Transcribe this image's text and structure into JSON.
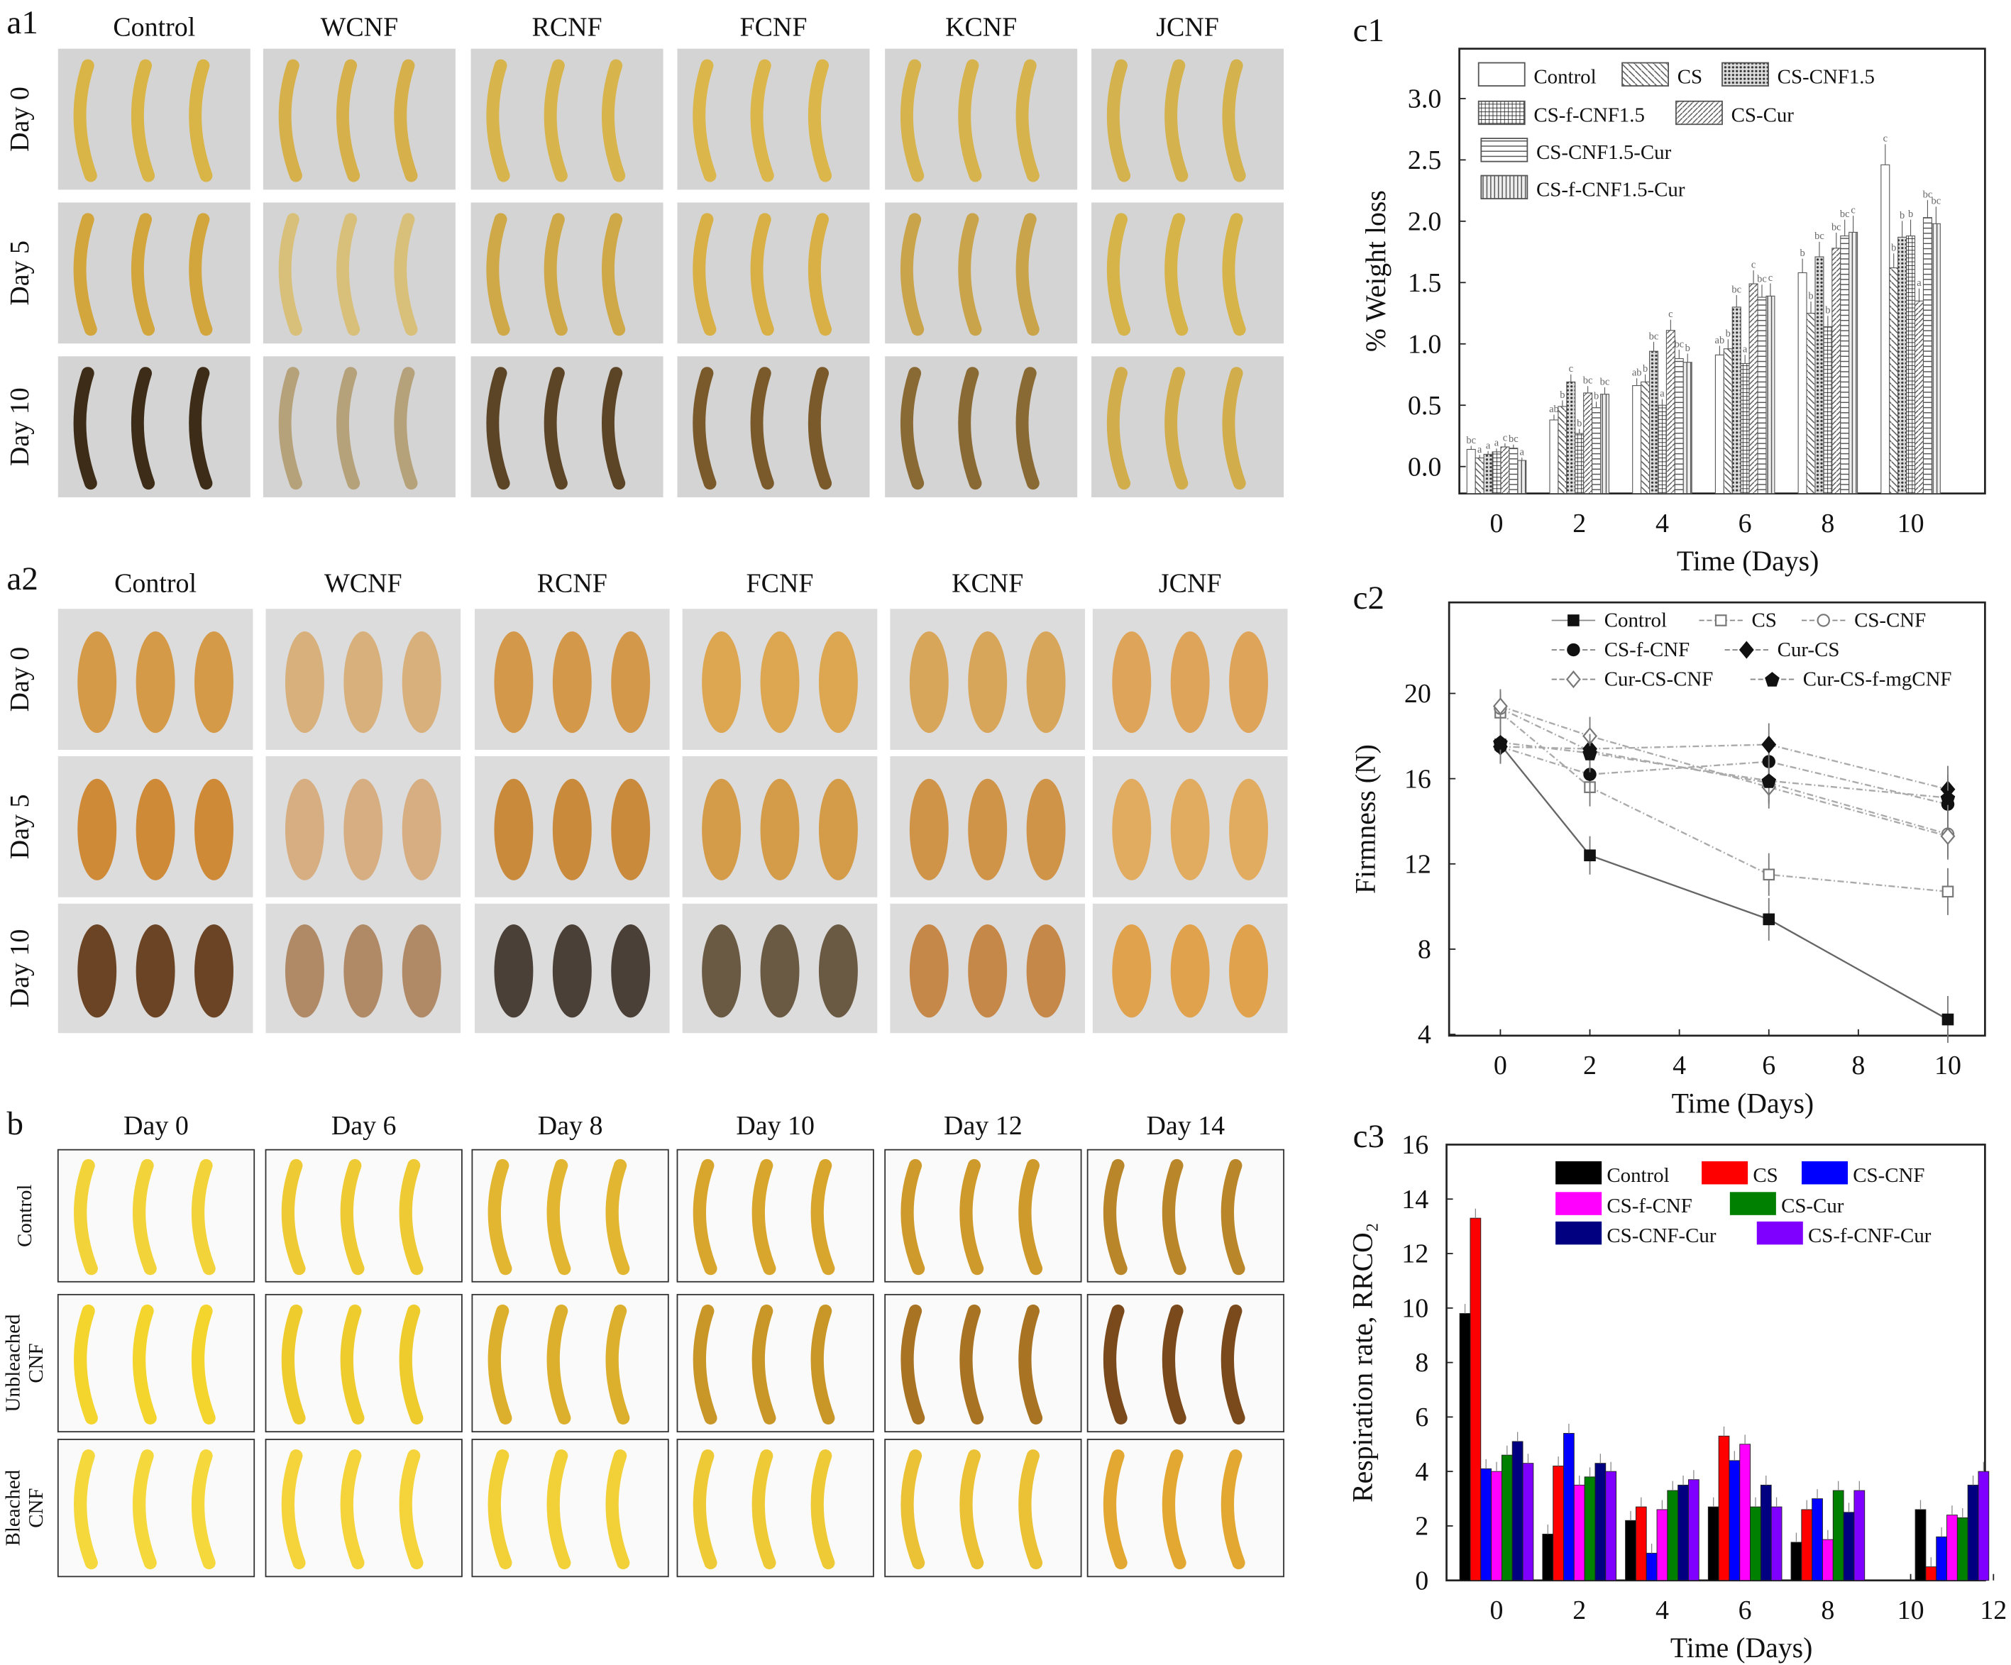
{
  "panel_a1": {
    "label": "a1",
    "columns": [
      "Control",
      "WCNF",
      "RCNF",
      "FCNF",
      "KCNF",
      "JCNF"
    ],
    "rows": [
      "Day 0",
      "Day 5",
      "Day 10"
    ]
  },
  "panel_a2": {
    "label": "a2",
    "columns": [
      "Control",
      "WCNF",
      "RCNF",
      "FCNF",
      "KCNF",
      "JCNF"
    ],
    "rows": [
      "Day 0",
      "Day 5",
      "Day 10"
    ]
  },
  "panel_b": {
    "label": "b",
    "columns": [
      "Day 0",
      "Day 6",
      "Day 8",
      "Day 10",
      "Day 12",
      "Day 14"
    ],
    "rows": [
      [
        "Control"
      ],
      [
        "Unbleached",
        "CNF"
      ],
      [
        "Bleached",
        "CNF"
      ]
    ]
  },
  "chart_data": [
    {
      "panel": "c1",
      "type": "bar",
      "xlabel": "Time (Days)",
      "ylabel": "% Weight loss",
      "categories": [
        "0",
        "2",
        "4",
        "6",
        "8",
        "10"
      ],
      "ylim": [
        -0.2,
        3.4
      ],
      "yticks": [
        "0.0",
        "0.5",
        "1.0",
        "1.5",
        "2.0",
        "2.5",
        "3.0"
      ],
      "legend_position": "top-left",
      "series": [
        {
          "name": "Control",
          "pattern": "none",
          "values": [
            0.14,
            0.38,
            0.66,
            0.91,
            1.58,
            2.46
          ],
          "letters": [
            "bc",
            "ab",
            "ab",
            "ab",
            "b",
            "c"
          ]
        },
        {
          "name": "CS",
          "pattern": "diagonal-back",
          "values": [
            0.07,
            0.49,
            0.69,
            0.96,
            1.25,
            1.62
          ],
          "letters": [
            "a",
            "b",
            "b",
            "b",
            "b",
            "b"
          ]
        },
        {
          "name": "CS-CNF1.5",
          "pattern": "dots",
          "values": [
            0.1,
            0.69,
            0.94,
            1.3,
            1.71,
            1.87
          ],
          "letters": [
            "a",
            "c",
            "bc",
            "bc",
            "bc",
            "b"
          ]
        },
        {
          "name": "CS-f-CNF1.5",
          "pattern": "grid",
          "values": [
            0.12,
            0.27,
            0.5,
            0.84,
            1.14,
            1.88
          ],
          "letters": [
            "a",
            "b",
            "a",
            "a",
            "b",
            "b"
          ]
        },
        {
          "name": "CS-Cur",
          "pattern": "diagonal",
          "values": [
            0.16,
            0.6,
            1.11,
            1.49,
            1.78,
            1.35
          ],
          "letters": [
            "c",
            "bc",
            "c",
            "c",
            "bc",
            "a"
          ]
        },
        {
          "name": "CS-CNF1.5-Cur",
          "pattern": "horizontal",
          "values": [
            0.15,
            0.48,
            0.88,
            1.38,
            1.88,
            2.03
          ],
          "letters": [
            "bc",
            "b",
            "bc",
            "bc",
            "bc",
            "bc"
          ]
        },
        {
          "name": "CS-f-CNF1.5-Cur",
          "pattern": "vertical",
          "values": [
            0.05,
            0.59,
            0.85,
            1.39,
            1.91,
            1.98
          ],
          "letters": [
            "a",
            "bc",
            "b",
            "c",
            "c",
            "bc"
          ]
        }
      ]
    },
    {
      "panel": "c2",
      "type": "line",
      "xlabel": "Time (Days)",
      "ylabel": "Firmness (N)",
      "x": [
        0,
        2,
        6,
        10
      ],
      "xlim": [
        -0.8,
        11.2
      ],
      "xticks": [
        "0",
        "2",
        "4",
        "6",
        "8",
        "10"
      ],
      "ylim": [
        4,
        24.2
      ],
      "yticks": [
        "4",
        "8",
        "12",
        "16",
        "20"
      ],
      "legend_position": "top",
      "series": [
        {
          "name": "Control",
          "marker": "filled-square",
          "values": [
            17.6,
            12.4,
            9.4,
            4.7
          ]
        },
        {
          "name": "CS",
          "marker": "open-square",
          "values": [
            19.1,
            15.6,
            11.5,
            10.7
          ]
        },
        {
          "name": "CS-CNF",
          "marker": "open-circle",
          "values": [
            19.3,
            17.3,
            15.8,
            13.4
          ]
        },
        {
          "name": "CS-f-CNF",
          "marker": "filled-circle",
          "values": [
            17.5,
            16.2,
            16.8,
            14.8
          ]
        },
        {
          "name": "Cur-CS",
          "marker": "filled-diamond",
          "values": [
            17.5,
            17.4,
            17.6,
            15.5
          ]
        },
        {
          "name": "Cur-CS-CNF",
          "marker": "open-diamond",
          "values": [
            19.4,
            18.0,
            15.6,
            13.3
          ]
        },
        {
          "name": "Cur-CS-f-mgCNF",
          "marker": "filled-pentagon",
          "values": [
            17.7,
            17.2,
            15.9,
            15.1
          ]
        }
      ]
    },
    {
      "panel": "c3",
      "type": "bar",
      "xlabel": "Time (Days)",
      "ylabel": "Respiration rate, RRCO₂",
      "x": [
        0,
        2,
        4,
        6,
        8,
        11
      ],
      "xticks": [
        "0",
        "2",
        "4",
        "6",
        "8",
        "10",
        "12"
      ],
      "ylim": [
        0,
        16
      ],
      "yticks": [
        "0",
        "2",
        "4",
        "6",
        "8",
        "10",
        "12",
        "14",
        "16"
      ],
      "legend_position": "top-right",
      "series": [
        {
          "name": "Control",
          "color": "#000000",
          "values": [
            9.8,
            1.7,
            2.2,
            2.7,
            1.4,
            2.6
          ]
        },
        {
          "name": "CS",
          "color": "#ff0000",
          "values": [
            13.3,
            4.2,
            2.7,
            5.3,
            2.6,
            0.5
          ]
        },
        {
          "name": "CS-CNF",
          "color": "#0000ff",
          "values": [
            4.1,
            5.4,
            1.0,
            4.4,
            3.0,
            1.6
          ]
        },
        {
          "name": "CS-f-CNF",
          "color": "#ff00ff",
          "values": [
            4.0,
            3.5,
            2.6,
            5.0,
            1.5,
            2.4
          ]
        },
        {
          "name": "CS-Cur",
          "color": "#008000",
          "values": [
            4.6,
            3.8,
            3.3,
            2.7,
            3.3,
            2.3
          ]
        },
        {
          "name": "CS-CNF-Cur",
          "color": "#000080",
          "values": [
            5.1,
            4.3,
            3.5,
            3.5,
            2.5,
            3.5
          ]
        },
        {
          "name": "CS-f-CNF-Cur",
          "color": "#8000ff",
          "values": [
            4.3,
            4.0,
            3.7,
            2.7,
            3.3,
            4.0
          ]
        }
      ]
    }
  ]
}
